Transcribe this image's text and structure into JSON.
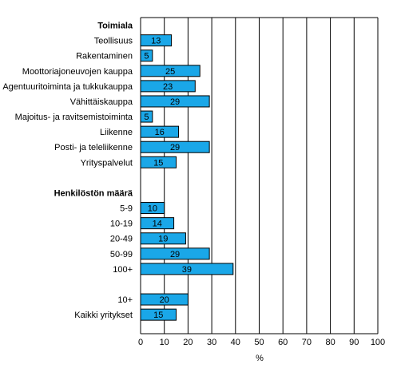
{
  "chart_data": {
    "type": "bar",
    "orientation": "horizontal",
    "xlabel": "%",
    "xlim": [
      0,
      100
    ],
    "xticks": [
      0,
      10,
      20,
      30,
      40,
      50,
      60,
      70,
      80,
      90,
      100
    ],
    "grid": "vertical lines",
    "bar_color": "#1aa7e8",
    "sections": [
      {
        "title": "Toimiala",
        "categories": [
          "Teollisuus",
          "Rakentaminen",
          "Moottoriajoneuvojen kauppa",
          "Agentuuritoiminta ja tukkukauppa",
          "Vähittäiskauppa",
          "Majoitus- ja ravitsemistoiminta",
          "Liikenne",
          "Posti- ja teleliikenne",
          "Yrityspalvelut"
        ],
        "values": [
          13,
          5,
          25,
          23,
          29,
          5,
          16,
          29,
          15
        ]
      },
      {
        "title": "Henkilöstön määrä",
        "categories": [
          "5-9",
          "10-19",
          "20-49",
          "50-99",
          "100+"
        ],
        "values": [
          10,
          14,
          19,
          29,
          39
        ]
      },
      {
        "title": "",
        "categories": [
          "10+",
          "Kaikki yritykset"
        ],
        "values": [
          20,
          15
        ]
      }
    ]
  }
}
